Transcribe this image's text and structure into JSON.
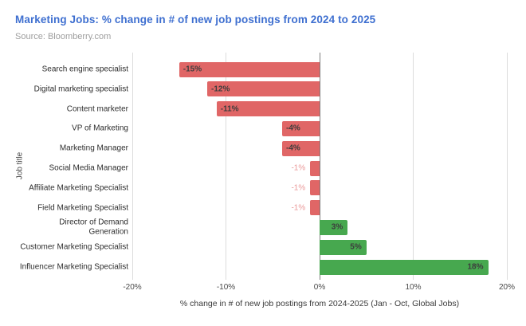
{
  "header": {
    "title": "Marketing Jobs: % change in # of new job postings from 2024 to 2025",
    "title_color": "#3e6fd0",
    "source": "Source: Bloomberry.com"
  },
  "chart_data": {
    "type": "bar",
    "orientation": "horizontal",
    "title": "Marketing Jobs: % change in # of new job postings from 2024 to 2025",
    "xlabel": "% change in # of new job postings from 2024-2025 (Jan - Oct, Global Jobs)",
    "ylabel": "Job title",
    "xlim": [
      -20,
      20
    ],
    "x_tick_labels": [
      "-20%",
      "-10%",
      "0%",
      "10%",
      "20%"
    ],
    "x_tick_values": [
      -20,
      -10,
      0,
      10,
      20
    ],
    "grid": true,
    "legend": "none",
    "categories": [
      "Search engine specialist",
      "Digital marketing specialist",
      "Content marketer",
      "VP of Marketing",
      "Marketing Manager",
      "Social Media Manager",
      "Affiliate Marketing Specialist",
      "Field Marketing Specialist",
      "Director of Demand\nGeneration",
      "Customer Marketing Specialist",
      "Influencer Marketing Specialist"
    ],
    "values": [
      -15,
      -12,
      -11,
      -4,
      -4,
      -1,
      -1,
      -1,
      3,
      5,
      18
    ],
    "value_labels": [
      "-15%",
      "-12%",
      "-11%",
      "-4%",
      "-4%",
      "-1%",
      "-1%",
      "-1%",
      "3%",
      "5%",
      "18%"
    ],
    "colors": {
      "negative_bar": "#e06666",
      "positive_bar": "#47a84f",
      "value_label": "#3d3d3d",
      "small_value_label": "#ea9999",
      "gridline": "#dcdcdc",
      "zero_line": "#7d7d7d"
    }
  }
}
